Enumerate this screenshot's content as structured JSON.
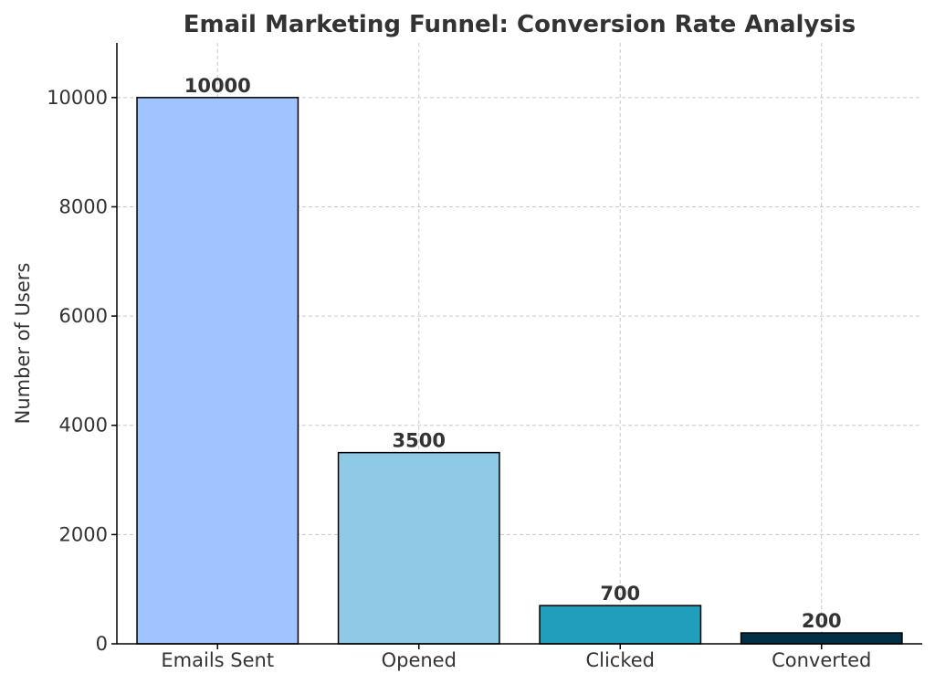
{
  "chart_data": {
    "type": "bar",
    "title": "Email Marketing Funnel: Conversion Rate Analysis",
    "xlabel": "",
    "ylabel": "Number of Users",
    "categories": [
      "Emails Sent",
      "Opened",
      "Clicked",
      "Converted"
    ],
    "values": [
      10000,
      3500,
      700,
      200
    ],
    "data_labels": [
      "10000",
      "3500",
      "700",
      "200"
    ],
    "colors": [
      "#a0c4ff",
      "#8ecae6",
      "#219ebc",
      "#023047"
    ],
    "ylim": [
      0,
      11000
    ],
    "yticks": [
      0,
      2000,
      4000,
      6000,
      8000,
      10000
    ],
    "grid": true
  }
}
